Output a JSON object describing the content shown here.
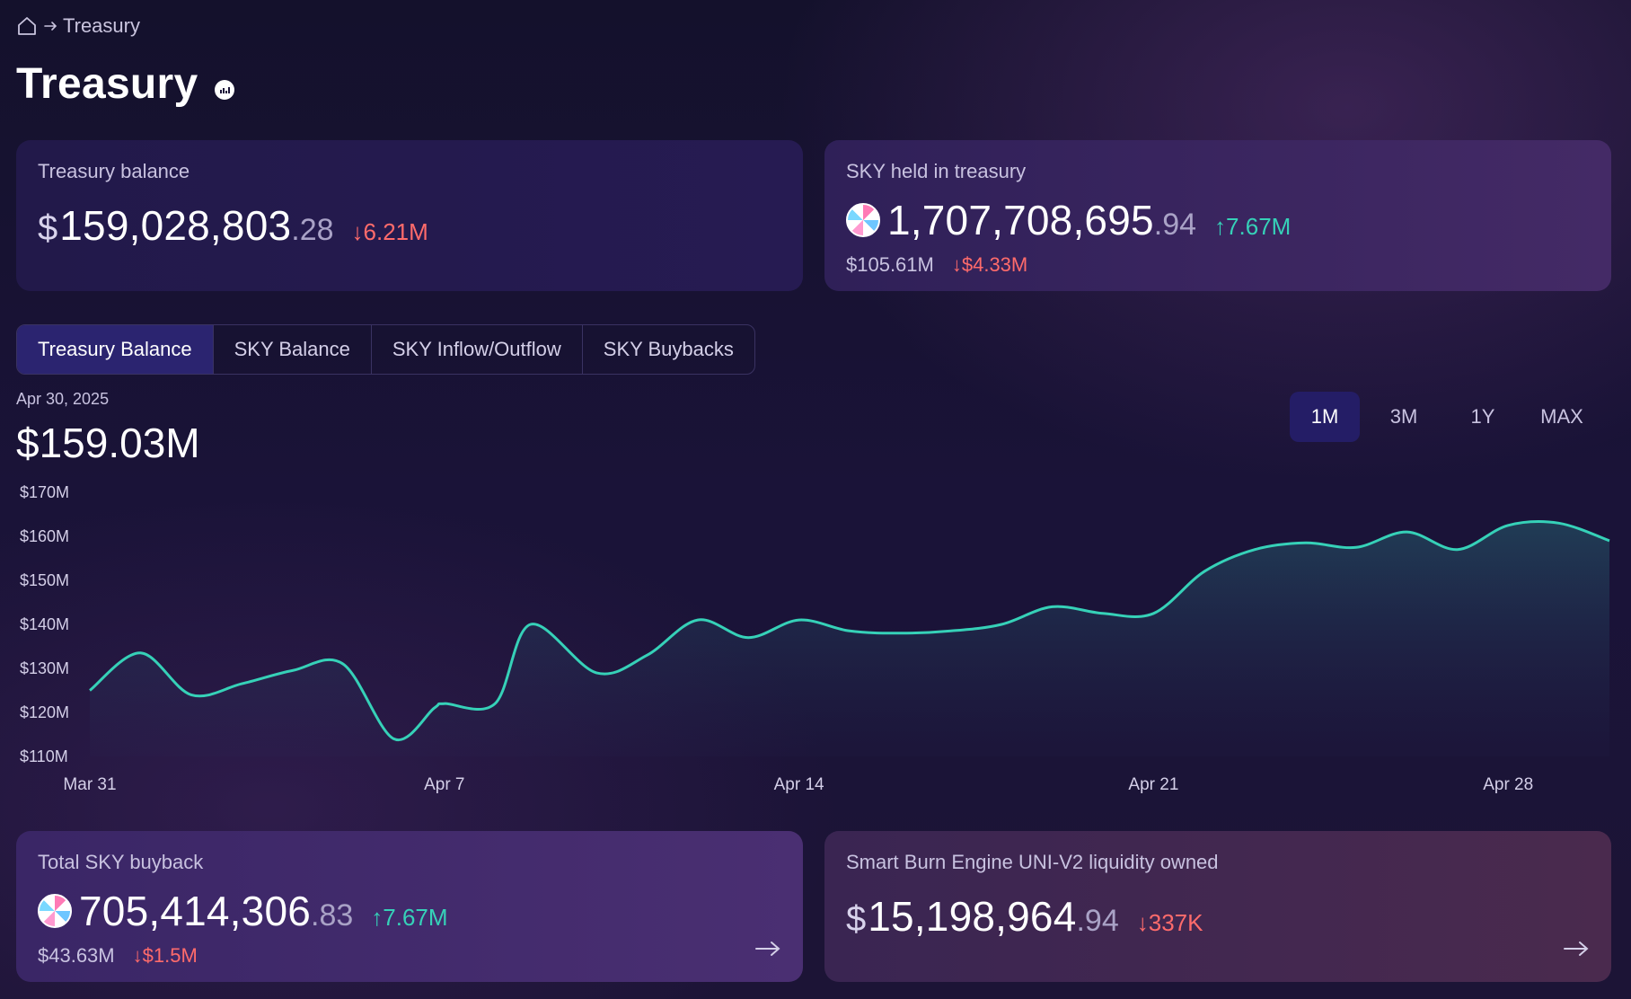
{
  "breadcrumb": {
    "current": "Treasury"
  },
  "page": {
    "title": "Treasury"
  },
  "cards": {
    "treasury_balance": {
      "label": "Treasury balance",
      "dollar": "$",
      "whole": "159,028,803",
      "cents": ".28",
      "delta": "↓6.21M"
    },
    "sky_held": {
      "label": "SKY held in treasury",
      "whole": "1,707,708,695",
      "cents": ".94",
      "delta": "↑7.67M",
      "usd": "$105.61M",
      "usd_delta": "↓$4.33M"
    },
    "total_buyback": {
      "label": "Total SKY buyback",
      "whole": "705,414,306",
      "cents": ".83",
      "delta": "↑7.67M",
      "usd": "$43.63M",
      "usd_delta": "↓$1.5M"
    },
    "smart_burn": {
      "label": "Smart Burn Engine UNI-V2 liquidity owned",
      "dollar": "$",
      "whole": "15,198,964",
      "cents": ".94",
      "delta": "↓337K"
    }
  },
  "tabs": [
    {
      "label": "Treasury Balance",
      "active": true
    },
    {
      "label": "SKY Balance",
      "active": false
    },
    {
      "label": "SKY Inflow/Outflow",
      "active": false
    },
    {
      "label": "SKY Buybacks",
      "active": false
    }
  ],
  "chart_header": {
    "date": "Apr 30, 2025",
    "value": "$159.03M"
  },
  "ranges": [
    {
      "label": "1M",
      "active": true
    },
    {
      "label": "3M",
      "active": false
    },
    {
      "label": "1Y",
      "active": false
    },
    {
      "label": "MAX",
      "active": false
    }
  ],
  "colors": {
    "line": "#36d1b8",
    "down": "#ff6b6b",
    "up": "#36d1b8",
    "active_tab": "#2b2470"
  },
  "chart_data": {
    "type": "area",
    "ylim": [
      110,
      170
    ],
    "yticks": [
      {
        "v": 170,
        "label": "$170M"
      },
      {
        "v": 160,
        "label": "$160M"
      },
      {
        "v": 150,
        "label": "$150M"
      },
      {
        "v": 140,
        "label": "$140M"
      },
      {
        "v": 130,
        "label": "$130M"
      },
      {
        "v": 120,
        "label": "$120M"
      },
      {
        "v": 110,
        "label": "$110M"
      }
    ],
    "xlim": [
      0,
      30
    ],
    "xticks": [
      {
        "d": 0,
        "label": "Mar 31"
      },
      {
        "d": 7,
        "label": "Apr 7"
      },
      {
        "d": 14,
        "label": "Apr 14"
      },
      {
        "d": 21,
        "label": "Apr 21"
      },
      {
        "d": 28,
        "label": "Apr 28"
      }
    ],
    "series": [
      {
        "x": [
          0,
          1,
          2,
          3,
          4,
          5,
          6,
          6.8,
          7,
          8,
          8.7,
          10,
          11,
          12,
          13,
          14,
          15,
          16,
          17,
          18,
          19,
          20,
          21,
          22,
          23,
          24,
          25,
          26,
          27,
          28,
          29,
          30
        ],
        "y": [
          125,
          133.5,
          124,
          126.5,
          129.5,
          131,
          114,
          121,
          122,
          122,
          140,
          129,
          133,
          141,
          137,
          141,
          138.5,
          138,
          138.5,
          140,
          144,
          142.5,
          142.5,
          152,
          157,
          158.5,
          157.5,
          161,
          157,
          162.5,
          163,
          159
        ]
      }
    ]
  }
}
